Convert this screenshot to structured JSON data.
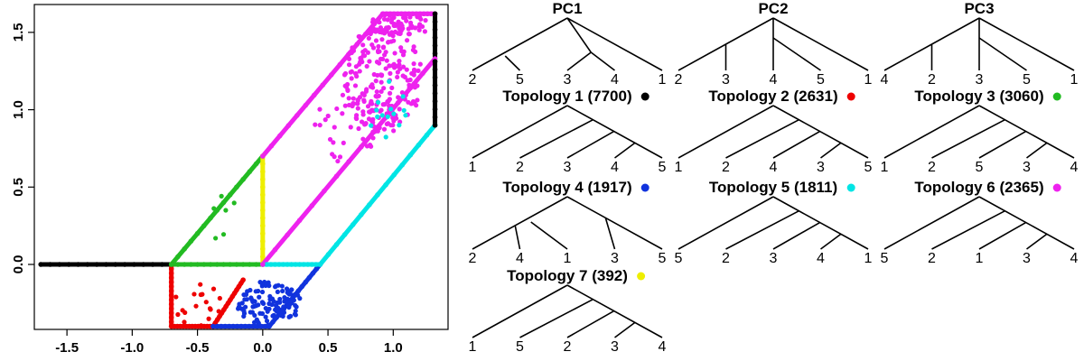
{
  "chart_data": [
    {
      "type": "scatter",
      "title": "",
      "xlabel": "",
      "ylabel": "",
      "xlim": [
        -1.75,
        1.42
      ],
      "ylim": [
        -0.42,
        1.68
      ],
      "x_ticks": [
        "-1.5",
        "-1.0",
        "-0.5",
        "0.0",
        "0.5",
        "1.0"
      ],
      "y_ticks": [
        "0.0",
        "0.5",
        "1.0",
        "1.5"
      ],
      "colors": {
        "black": "#000000",
        "red": "#ee0000",
        "green": "#22bb22",
        "blue": "#1133dd",
        "cyan": "#00e5e5",
        "magenta": "#ee22ee",
        "yellow": "#eeee00"
      },
      "segments": [
        {
          "color": "black",
          "points": [
            [
              -1.7,
              0.0
            ],
            [
              -0.7,
              0.0
            ]
          ]
        },
        {
          "color": "red",
          "points": [
            [
              -0.7,
              0.0
            ],
            [
              -0.7,
              -0.4
            ],
            [
              -0.38,
              -0.4
            ],
            [
              -0.15,
              -0.1
            ]
          ]
        },
        {
          "color": "green",
          "points": [
            [
              -0.7,
              0.0
            ],
            [
              0.0,
              0.0
            ]
          ]
        },
        {
          "color": "green",
          "points": [
            [
              -0.7,
              0.0
            ],
            [
              0.0,
              0.7
            ]
          ]
        },
        {
          "color": "yellow",
          "points": [
            [
              0.0,
              0.0
            ],
            [
              0.0,
              0.7
            ]
          ]
        },
        {
          "color": "blue",
          "points": [
            [
              -0.38,
              -0.4
            ],
            [
              0.05,
              -0.4
            ],
            [
              0.44,
              0.0
            ]
          ]
        },
        {
          "color": "cyan",
          "points": [
            [
              0.0,
              0.0
            ],
            [
              0.44,
              0.0
            ],
            [
              1.32,
              0.9
            ]
          ]
        },
        {
          "color": "magenta",
          "points": [
            [
              0.0,
              0.7
            ],
            [
              0.92,
              1.62
            ],
            [
              1.32,
              1.62
            ]
          ]
        },
        {
          "color": "magenta",
          "points": [
            [
              0.0,
              0.0
            ],
            [
              1.32,
              1.33
            ]
          ]
        },
        {
          "color": "black",
          "points": [
            [
              1.32,
              0.9
            ],
            [
              1.32,
              1.62
            ]
          ]
        }
      ],
      "clusters": [
        {
          "color": "magenta",
          "cx": 0.92,
          "cy": 1.2,
          "rx": 0.3,
          "ry": 0.35,
          "n": 220
        },
        {
          "color": "magenta",
          "cx": 1.05,
          "cy": 1.55,
          "rx": 0.25,
          "ry": 0.07,
          "n": 60
        },
        {
          "color": "magenta",
          "cx": 0.65,
          "cy": 0.9,
          "rx": 0.25,
          "ry": 0.25,
          "n": 30
        },
        {
          "color": "blue",
          "cx": 0.05,
          "cy": -0.25,
          "rx": 0.25,
          "ry": 0.15,
          "n": 110
        },
        {
          "color": "red",
          "cx": -0.5,
          "cy": -0.25,
          "rx": 0.2,
          "ry": 0.15,
          "n": 18
        },
        {
          "color": "green",
          "cx": -0.3,
          "cy": 0.3,
          "rx": 0.15,
          "ry": 0.2,
          "n": 6
        },
        {
          "color": "cyan",
          "cx": 0.95,
          "cy": 1.0,
          "rx": 0.15,
          "ry": 0.2,
          "n": 14
        }
      ]
    }
  ],
  "trees": [
    {
      "title": "PC1",
      "leaves": [
        "2",
        "5",
        "3",
        "4",
        "1"
      ],
      "dot": ""
    },
    {
      "title": "PC2",
      "leaves": [
        "2",
        "3",
        "4",
        "5",
        "1"
      ],
      "dot": ""
    },
    {
      "title": "PC3",
      "leaves": [
        "4",
        "2",
        "3",
        "5",
        "1"
      ],
      "dot": ""
    },
    {
      "title": "Topology 1 (7700)",
      "leaves": [
        "1",
        "2",
        "3",
        "4",
        "5"
      ],
      "dot": "#000000"
    },
    {
      "title": "Topology 2 (2631)",
      "leaves": [
        "1",
        "2",
        "4",
        "3",
        "5"
      ],
      "dot": "#ee0000"
    },
    {
      "title": "Topology 3 (3060)",
      "leaves": [
        "1",
        "2",
        "5",
        "3",
        "4"
      ],
      "dot": "#22bb22"
    },
    {
      "title": "Topology 4 (1917)",
      "leaves": [
        "2",
        "4",
        "1",
        "3",
        "5"
      ],
      "dot": "#1133dd"
    },
    {
      "title": "Topology 5 (1811)",
      "leaves": [
        "5",
        "2",
        "3",
        "4",
        "1"
      ],
      "dot": "#00e5e5"
    },
    {
      "title": "Topology 6 (2365)",
      "leaves": [
        "5",
        "2",
        "1",
        "3",
        "4"
      ],
      "dot": "#ee22ee"
    },
    {
      "title": "Topology 7 (392)",
      "leaves": [
        "1",
        "5",
        "2",
        "3",
        "4"
      ],
      "dot": "#eeee00"
    }
  ]
}
